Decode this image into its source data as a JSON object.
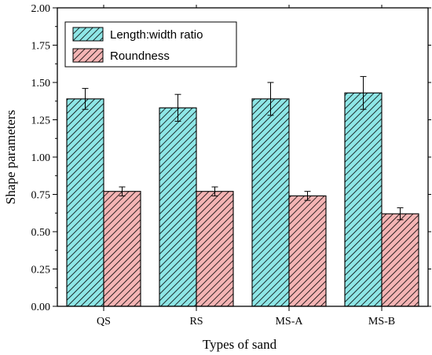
{
  "chart_data": {
    "type": "bar",
    "title": "",
    "xlabel": "Types of sand",
    "ylabel": "Shape parameters",
    "categories": [
      "QS",
      "RS",
      "MS-A",
      "MS-B"
    ],
    "ylim": [
      0,
      2.0
    ],
    "yticks": [
      "0.00",
      "0.25",
      "0.50",
      "0.75",
      "1.00",
      "1.25",
      "1.50",
      "1.75",
      "2.00"
    ],
    "series": [
      {
        "name": "Length:width ratio",
        "values": [
          1.39,
          1.33,
          1.39,
          1.43
        ],
        "errors": [
          0.07,
          0.09,
          0.11,
          0.11
        ],
        "color": "#8ee6e6",
        "pattern": "diagonal-hatch"
      },
      {
        "name": "Roundness",
        "values": [
          0.77,
          0.77,
          0.74,
          0.62
        ],
        "errors": [
          0.03,
          0.03,
          0.03,
          0.04
        ],
        "color": "#f4b4b4",
        "pattern": "diagonal-hatch"
      }
    ],
    "grid": false,
    "legend_position": "top-left"
  }
}
